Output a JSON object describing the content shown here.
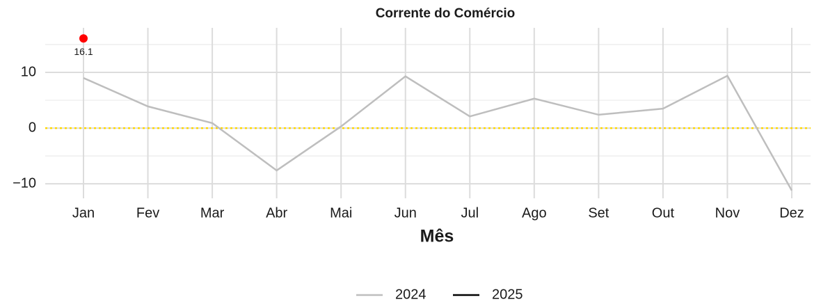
{
  "chart_data": {
    "type": "line",
    "title": "Corrente do Comércio",
    "x_label": "Mês",
    "categories": [
      "Jan",
      "Fev",
      "Mar",
      "Abr",
      "Mai",
      "Jun",
      "Jul",
      "Ago",
      "Set",
      "Out",
      "Nov",
      "Dez"
    ],
    "series": [
      {
        "name": "2024",
        "color": "#bebebe",
        "values": [
          9,
          3.9,
          0.9,
          -7.6,
          0.3,
          9.3,
          2.1,
          5.3,
          2.4,
          3.5,
          9.4,
          -11.2
        ]
      },
      {
        "name": "2025",
        "color": "#000000",
        "values": [
          16.1,
          null,
          null,
          null,
          null,
          null,
          null,
          null,
          null,
          null,
          null,
          null
        ]
      }
    ],
    "point_color": "#ff0000",
    "hline": {
      "value": 0,
      "color": "#ffd700"
    },
    "ylim": [
      -12.6,
      18
    ],
    "yticks": [
      {
        "value": -10,
        "label": "−10"
      },
      0,
      10
    ],
    "yminor": [
      -5,
      5,
      15
    ],
    "grid": true,
    "legend": "bottom"
  }
}
